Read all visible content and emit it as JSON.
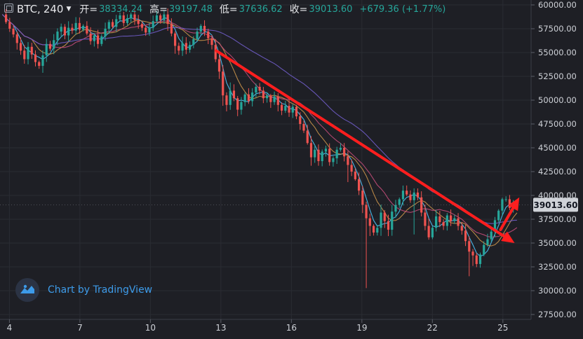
{
  "header": {
    "symbol": "BTC,",
    "timeframe": "240",
    "open_label": "开=",
    "open_value": "38334.24",
    "high_label": "高=",
    "high_value": "39197.48",
    "low_label": "低=",
    "low_value": "37636.62",
    "close_label": "收=",
    "close_value": "39013.60",
    "change": "+679.36 (+1.77%)"
  },
  "watermark": {
    "text": "Chart by TradingView"
  },
  "colors": {
    "background": "#1e1f25",
    "up": "#26a69a",
    "down": "#ef5350",
    "ma_fast": "#4fc3f7",
    "ma_mid": "#c8924a",
    "ma_slow": "#c04b78",
    "ma_long": "#6f5cc6",
    "trend_arrow": "#ff1e1e",
    "price_label_bg": "#cfd2d8"
  },
  "chart_data": {
    "type": "candlestick",
    "y_ticks": [
      "60000.00",
      "57500.00",
      "55000.00",
      "52500.00",
      "50000.00",
      "47500.00",
      "45000.00",
      "42500.00",
      "40000.00",
      "37500.00",
      "35000.00",
      "32500.00",
      "30000.00",
      "27500.00"
    ],
    "ylim": [
      27500,
      60000
    ],
    "x_ticks": [
      "4",
      "7",
      "10",
      "13",
      "16",
      "19",
      "22",
      "25"
    ],
    "x_tick_day": [
      4,
      7,
      10,
      13,
      16,
      19,
      22,
      25
    ],
    "x_range_days": [
      3.6,
      26.2
    ],
    "last_price_label": "39013.60",
    "last_price": 39013.6,
    "ma_periods": [
      "fast",
      "mid",
      "slow",
      "long"
    ],
    "trend_down": {
      "from": {
        "day": 12.8,
        "price": 55200
      },
      "to": {
        "day": 25.5,
        "price": 35000
      }
    },
    "trend_up": {
      "from": {
        "day": 24.9,
        "price": 36400
      },
      "to": {
        "day": 25.7,
        "price": 39800
      }
    },
    "closes": [
      59000,
      58200,
      57500,
      56900,
      56000,
      55200,
      54300,
      55600,
      54800,
      54000,
      53600,
      54700,
      55900,
      55400,
      56300,
      57200,
      57700,
      56800,
      57600,
      57300,
      58100,
      57400,
      57800,
      57000,
      56200,
      56800,
      55900,
      56700,
      57500,
      58200,
      57700,
      58500,
      58900,
      58100,
      58600,
      59000,
      58400,
      58000,
      57600,
      57100,
      57600,
      58300,
      58900,
      58400,
      59000,
      58000,
      57000,
      55700,
      55200,
      56000,
      55300,
      55800,
      56400,
      57200,
      57800,
      57200,
      56500,
      55800,
      54300,
      53000,
      50500,
      49500,
      51000,
      50200,
      49000,
      49800,
      50600,
      49900,
      50800,
      51400,
      51000,
      50200,
      50500,
      49800,
      50400,
      49500,
      48900,
      49400,
      48700,
      49300,
      48300,
      47500,
      46800,
      45500,
      44000,
      44800,
      43600,
      44600,
      44900,
      43500,
      43900,
      44800,
      45000,
      44100,
      43200,
      42500,
      41700,
      40500,
      39000,
      37600,
      36800,
      36100,
      36600,
      38200,
      37300,
      36400,
      38300,
      39000,
      39600,
      40500,
      40100,
      39500,
      40300,
      39800,
      38200,
      36800,
      35600,
      36600,
      37800,
      37200,
      36800,
      37900,
      37300,
      37600,
      36800,
      36300,
      35200,
      34100,
      33700,
      32800,
      33800,
      34800,
      35400,
      36200,
      37400,
      38400,
      39600,
      39600,
      38700,
      39200,
      39013.6
    ]
  }
}
